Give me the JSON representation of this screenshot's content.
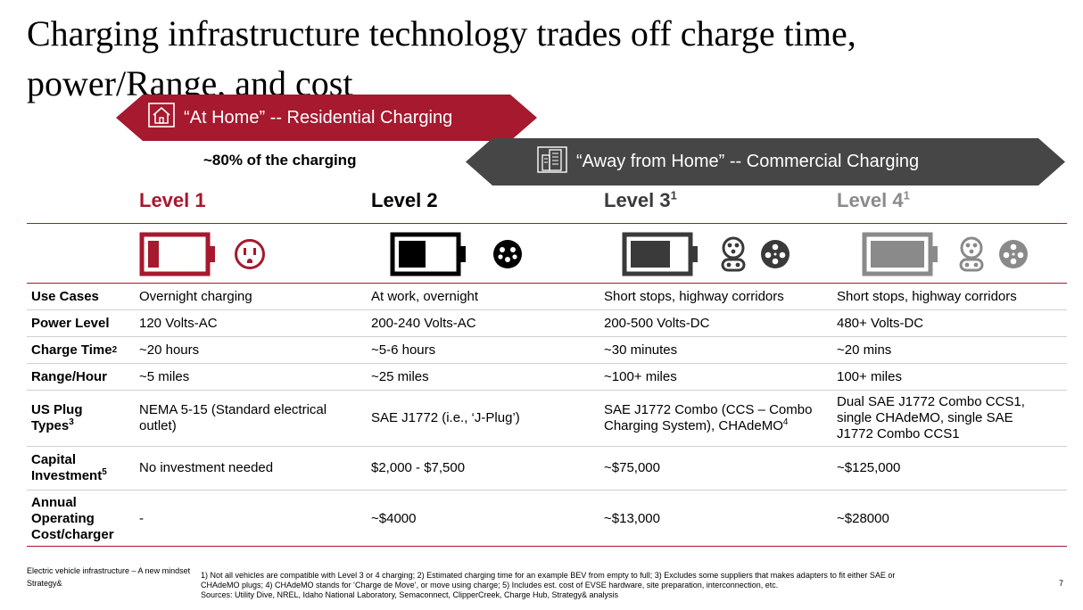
{
  "slide": {
    "title": "Charging infrastructure technology trades off charge time, power/Range, and cost",
    "page_number": "7"
  },
  "banners": {
    "home": {
      "label": "“At Home” -- Residential Charging",
      "icon": "house-icon",
      "color": "#a6192e"
    },
    "away": {
      "label": "“Away from Home” -- Commercial Charging",
      "icon": "building-icon",
      "color": "#464646"
    },
    "share_label": "~80% of the charging"
  },
  "levels": [
    {
      "name": "Level 1",
      "sup": "",
      "color": "#a6192e"
    },
    {
      "name": "Level 2",
      "sup": "",
      "color": "#000000"
    },
    {
      "name": "Level 3",
      "sup": "1",
      "color": "#3a3a3a"
    },
    {
      "name": "Level 4",
      "sup": "1",
      "color": "#8a8a8a"
    }
  ],
  "rows": [
    {
      "label": "Use Cases",
      "sup": "",
      "values": [
        "Overnight charging",
        "At work, overnight",
        "Short stops, highway corridors",
        "Short stops, highway corridors"
      ]
    },
    {
      "label": "Power Level",
      "sup": "",
      "values": [
        "120 Volts-AC",
        "200-240 Volts-AC",
        "200-500 Volts-DC",
        "480+ Volts-DC"
      ]
    },
    {
      "label": "Charge Time",
      "sup": "2",
      "values": [
        "~20 hours",
        "~5-6 hours",
        "~30 minutes",
        "~20 mins"
      ]
    },
    {
      "label": "Range/Hour",
      "sup": "",
      "values": [
        "~5 miles",
        "~25 miles",
        "~100+ miles",
        "100+ miles"
      ]
    },
    {
      "label": "US Plug Types",
      "sup": "3",
      "values": [
        "NEMA 5-15 (Standard electrical outlet)",
        "SAE J1772 (i.e., ‘J-Plug’)",
        "SAE J1772 Combo (CCS – Combo Charging System), CHAdeMO",
        "Dual SAE J1772 Combo CCS1, single CHAdeMO, single SAE J1772 Combo CCS1"
      ],
      "value_sups": [
        "",
        "",
        "4",
        ""
      ]
    },
    {
      "label": "Capital Investment",
      "sup": "5",
      "values": [
        "No investment needed",
        "$2,000 - $7,500",
        "~$75,000",
        "~$125,000"
      ]
    },
    {
      "label": "Annual Operating Cost/charger",
      "sup": "",
      "values": [
        "-",
        "~$4000",
        "~$13,000",
        "~$28000"
      ]
    }
  ],
  "footer": {
    "left_line1": "Electric vehicle infrastructure – A new mindset",
    "left_line2": "Strategy&",
    "note1": "1) Not all vehicles are compatible with Level 3 or 4 charging; 2) Estimated charging time for an example BEV from empty to full; 3) Excludes some suppliers that makes adapters to fit either SAE or",
    "note2": "CHAdeMO plugs; 4) CHAdeMO stands for ‘Charge de Move’, or move using charge; 5) Includes est. cost of EVSE hardware, site preparation, interconnection, etc.",
    "note3": "Sources: Utility Dive, NREL, Idaho National Laboratory, Semaconnect, ClipperCreek, Charge Hub, Strategy& analysis"
  }
}
